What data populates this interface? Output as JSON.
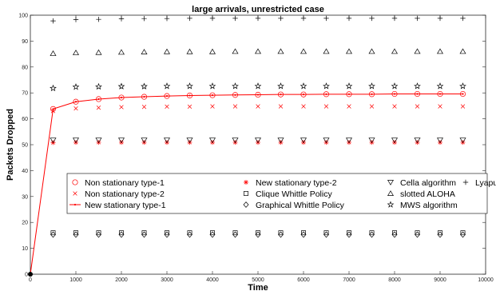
{
  "chart_data": {
    "type": "line",
    "title": "large arrivals, unrestricted case",
    "xlabel": "Time",
    "ylabel": "Packets Dropped",
    "xlim": [
      0,
      10000
    ],
    "ylim": [
      0,
      100
    ],
    "xticks": [
      0,
      1000,
      2000,
      3000,
      4000,
      5000,
      6000,
      7000,
      8000,
      9000,
      10000
    ],
    "yticks": [
      0,
      10,
      20,
      30,
      40,
      50,
      60,
      70,
      80,
      90,
      100
    ],
    "grid": false,
    "legend_position": "center-right",
    "x": [
      0,
      500,
      1000,
      1500,
      2000,
      2500,
      3000,
      3500,
      4000,
      4500,
      5000,
      5500,
      6000,
      6500,
      7000,
      7500,
      8000,
      8500,
      9000,
      9500
    ],
    "series": [
      {
        "name": "Non stationary type-1",
        "marker": "circle",
        "color": "#ff0000",
        "line": false,
        "values": [
          0,
          63.8,
          66.6,
          67.6,
          68.2,
          68.5,
          68.8,
          69.0,
          69.1,
          69.2,
          69.3,
          69.4,
          69.4,
          69.5,
          69.5,
          69.5,
          69.6,
          69.6,
          69.6,
          69.6
        ]
      },
      {
        "name": "Non stationary type-2",
        "marker": "x",
        "color": "#ff0000",
        "line": false,
        "values": [
          0,
          63.0,
          64.0,
          64.3,
          64.5,
          64.6,
          64.7,
          64.7,
          64.8,
          64.8,
          64.8,
          64.8,
          64.8,
          64.8,
          64.8,
          64.8,
          64.8,
          64.8,
          64.8,
          64.8
        ]
      },
      {
        "name": "New stationary type-1",
        "marker": "dot",
        "color": "#ff0000",
        "line": true,
        "values": [
          0,
          63.8,
          66.6,
          67.6,
          68.2,
          68.5,
          68.8,
          69.0,
          69.1,
          69.2,
          69.3,
          69.4,
          69.4,
          69.5,
          69.5,
          69.5,
          69.6,
          69.6,
          69.6,
          69.6
        ]
      },
      {
        "name": "New stationary type-2",
        "marker": "asterisk",
        "color": "#ff0000",
        "line": false,
        "values": [
          0,
          50.8,
          50.9,
          50.9,
          50.9,
          50.9,
          50.9,
          50.9,
          50.9,
          50.9,
          50.9,
          50.9,
          50.9,
          50.9,
          50.9,
          50.9,
          50.9,
          50.9,
          50.9,
          50.9
        ]
      },
      {
        "name": "Clique Whittle Policy",
        "marker": "square",
        "color": "#000000",
        "line": false,
        "values": [
          0,
          16.0,
          16.0,
          16.0,
          16.0,
          16.0,
          16.0,
          16.0,
          16.0,
          16.0,
          16.0,
          16.0,
          16.0,
          16.0,
          16.0,
          16.0,
          16.0,
          16.0,
          16.0,
          16.0
        ]
      },
      {
        "name": "Graphical Whittle Policy",
        "marker": "diamond",
        "color": "#000000",
        "line": false,
        "values": [
          0,
          15.3,
          15.3,
          15.3,
          15.3,
          15.3,
          15.3,
          15.3,
          15.3,
          15.3,
          15.3,
          15.3,
          15.3,
          15.3,
          15.3,
          15.3,
          15.3,
          15.3,
          15.3,
          15.3
        ]
      },
      {
        "name": "Cella algorithm",
        "marker": "triangle-down",
        "color": "#000000",
        "line": false,
        "values": [
          0,
          51.8,
          51.8,
          51.8,
          51.8,
          51.8,
          51.8,
          51.8,
          51.8,
          51.8,
          51.8,
          51.8,
          51.8,
          51.8,
          51.8,
          51.8,
          51.8,
          51.8,
          51.8,
          51.8
        ]
      },
      {
        "name": "slotted ALOHA",
        "marker": "triangle-up",
        "color": "#000000",
        "line": false,
        "values": [
          0,
          85.2,
          85.5,
          85.6,
          85.7,
          85.8,
          85.9,
          85.9,
          85.9,
          86.0,
          86.0,
          86.0,
          86.0,
          86.0,
          86.0,
          86.0,
          86.0,
          86.0,
          86.0,
          86.0
        ]
      },
      {
        "name": "MWS algorithm",
        "marker": "star",
        "color": "#000000",
        "line": false,
        "values": [
          0,
          71.8,
          72.3,
          72.4,
          72.5,
          72.5,
          72.6,
          72.6,
          72.6,
          72.6,
          72.6,
          72.6,
          72.6,
          72.6,
          72.6,
          72.6,
          72.6,
          72.6,
          72.6,
          72.6
        ]
      },
      {
        "name": "Lyapunov drift algorithm",
        "marker": "plus",
        "color": "#000000",
        "line": false,
        "values": [
          0,
          97.8,
          98.3,
          98.4,
          98.6,
          98.7,
          98.7,
          98.8,
          98.8,
          98.8,
          98.8,
          98.8,
          98.8,
          98.8,
          98.8,
          98.8,
          98.8,
          98.8,
          98.8,
          98.8
        ]
      }
    ]
  }
}
